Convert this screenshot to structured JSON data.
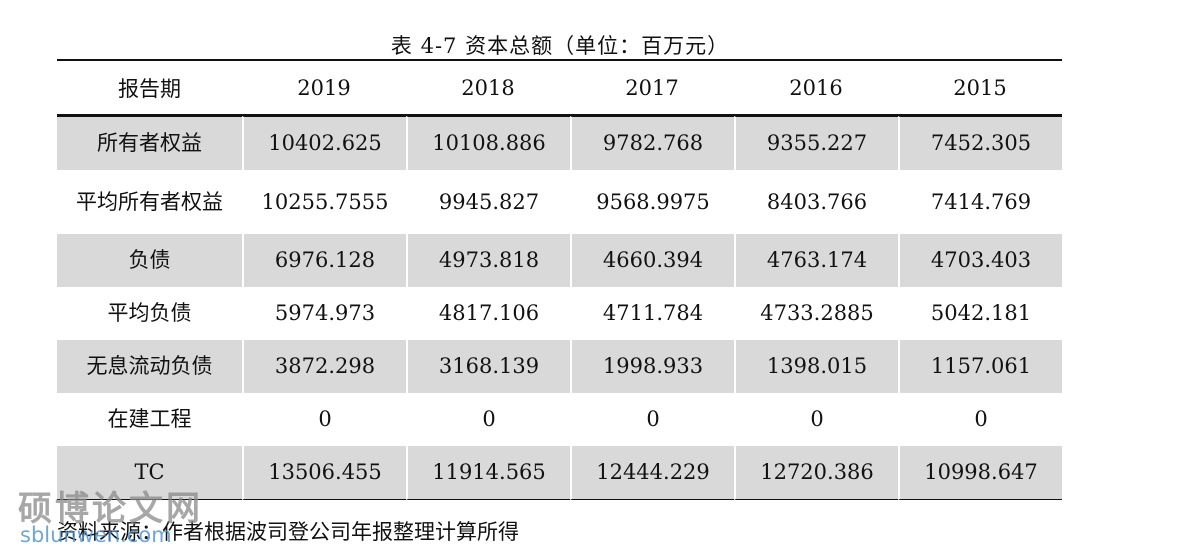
{
  "caption": "表 4-7  资本总额（单位：百万元）",
  "table": {
    "headers": [
      "报告期",
      "2019",
      "2018",
      "2017",
      "2016",
      "2015"
    ],
    "rows": [
      {
        "label": "所有者权益",
        "values": [
          "10402.625",
          "10108.886",
          "9782.768",
          "9355.227",
          "7452.305"
        ]
      },
      {
        "label": "平均所有者权益",
        "values": [
          "10255.7555",
          "9945.827",
          "9568.9975",
          "8403.766",
          "7414.769"
        ]
      },
      {
        "label": "负债",
        "values": [
          "6976.128",
          "4973.818",
          "4660.394",
          "4763.174",
          "4703.403"
        ]
      },
      {
        "label": "平均负债",
        "values": [
          "5974.973",
          "4817.106",
          "4711.784",
          "4733.2885",
          "5042.181"
        ]
      },
      {
        "label": "无息流动负债",
        "values": [
          "3872.298",
          "3168.139",
          "1998.933",
          "1398.015",
          "1157.061"
        ]
      },
      {
        "label": "在建工程",
        "values": [
          "0",
          "0",
          "0",
          "0",
          "0"
        ]
      },
      {
        "label": "TC",
        "values": [
          "13506.455",
          "11914.565",
          "12444.229",
          "12720.386",
          "10998.647"
        ]
      }
    ]
  },
  "source": "资料来源：作者根据波司登公司年报整理计算所得",
  "watermark": {
    "title": "硕博论文网",
    "url": "sblunwen.com"
  }
}
